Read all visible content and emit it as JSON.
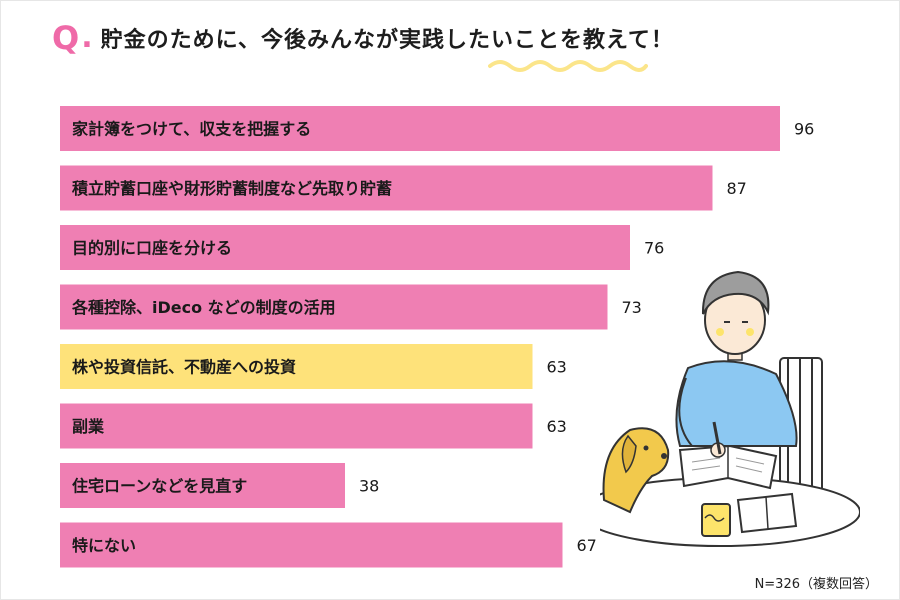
{
  "question": {
    "q_letter": "Q",
    "q_dot": ".",
    "title": "貯金のために、今後みんなが実践したいことを教えて！"
  },
  "note": "N=326（複数回答）",
  "colors": {
    "accent": "#ef6aa8",
    "bar_pink": "#ef7fb3",
    "bar_yellow": "#fee27a",
    "squiggle": "#fbe58a"
  },
  "chart_data": {
    "type": "bar",
    "orientation": "horizontal",
    "title": "貯金のために、今後みんなが実践したいことを教えて！",
    "xlim": [
      0,
      96
    ],
    "categories": [
      "家計簿をつけて、収支を把握する",
      "積立貯蓄口座や財形貯蓄制度など先取り貯蓄",
      "目的別に口座を分ける",
      "各種控除、iDeco などの制度の活用",
      "株や投資信託、不動産への投資",
      "副業",
      "住宅ローンなどを見直す",
      "特にない"
    ],
    "values": [
      96,
      87,
      76,
      73,
      63,
      63,
      38,
      67
    ],
    "bar_colors": [
      "#ef7fb3",
      "#ef7fb3",
      "#ef7fb3",
      "#ef7fb3",
      "#fee27a",
      "#ef7fb3",
      "#ef7fb3",
      "#ef7fb3"
    ],
    "grid": false,
    "legend": "none"
  }
}
